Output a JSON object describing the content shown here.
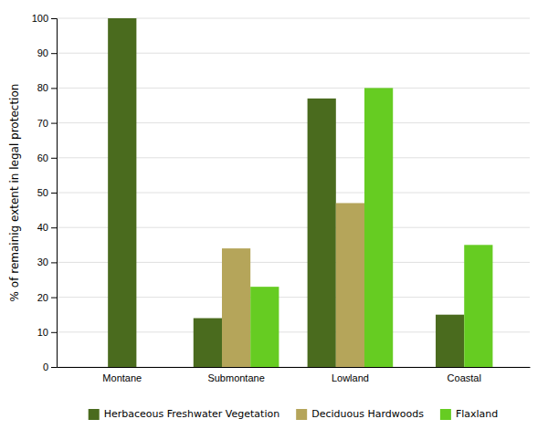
{
  "chart_data": {
    "type": "bar",
    "categories": [
      "Montane",
      "Submontane",
      "Lowland",
      "Coastal"
    ],
    "series": [
      {
        "name": "Herbaceous Freshwater Vegetation",
        "color": "#4a6b1e",
        "values": [
          100,
          14,
          77,
          15
        ]
      },
      {
        "name": "Deciduous Hardwoods",
        "color": "#b5a55a",
        "values": [
          null,
          34,
          47,
          null
        ]
      },
      {
        "name": "Flaxland",
        "color": "#66cc22",
        "values": [
          null,
          23,
          80,
          35
        ]
      }
    ],
    "ylabel": "% of remainig extent in legal protection",
    "ylim": [
      0,
      100
    ],
    "yticks": [
      0,
      10,
      20,
      30,
      40,
      50,
      60,
      70,
      80,
      90,
      100
    ],
    "grid": true,
    "legend": "bottom"
  }
}
